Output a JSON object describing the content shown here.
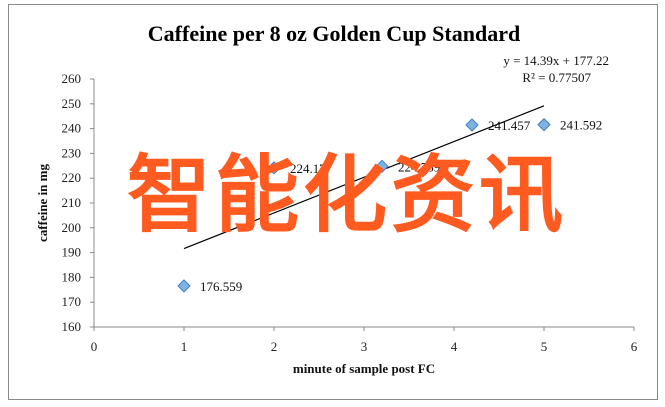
{
  "chart_data": {
    "type": "scatter",
    "title": "Caffeine per 8 oz Golden Cup Standard",
    "xlabel": "minute of sample post FC",
    "ylabel": "caffeine in mg",
    "xlim": [
      0,
      6
    ],
    "ylim": [
      160,
      260
    ],
    "x_ticks": [
      "0",
      "1",
      "2",
      "3",
      "4",
      "5",
      "6"
    ],
    "y_ticks": [
      "160",
      "170",
      "180",
      "190",
      "200",
      "210",
      "220",
      "230",
      "240",
      "250",
      "260"
    ],
    "points": [
      {
        "x": 1.0,
        "y": 176.559,
        "label": "176.559"
      },
      {
        "x": 2.0,
        "y": 224.177,
        "label": "224.177"
      },
      {
        "x": 3.2,
        "y": 224.789,
        "label": "224.789"
      },
      {
        "x": 4.2,
        "y": 241.457,
        "label": "241.457"
      },
      {
        "x": 5.0,
        "y": 241.592,
        "label": "241.592"
      }
    ],
    "trendline": {
      "type": "linear",
      "slope": 14.39,
      "intercept": 177.22,
      "x_range": [
        1,
        5
      ],
      "equation": "y = 14.39x + 177.22",
      "r_squared": "R² = 0.77507"
    },
    "marker_color": "#7fb2e0",
    "marker_edge_color": "#3f7fc4",
    "grid": false,
    "legend": "none"
  },
  "overlay": {
    "watermark_text": "智能化资讯",
    "watermark_color": "#ff5a1f"
  }
}
